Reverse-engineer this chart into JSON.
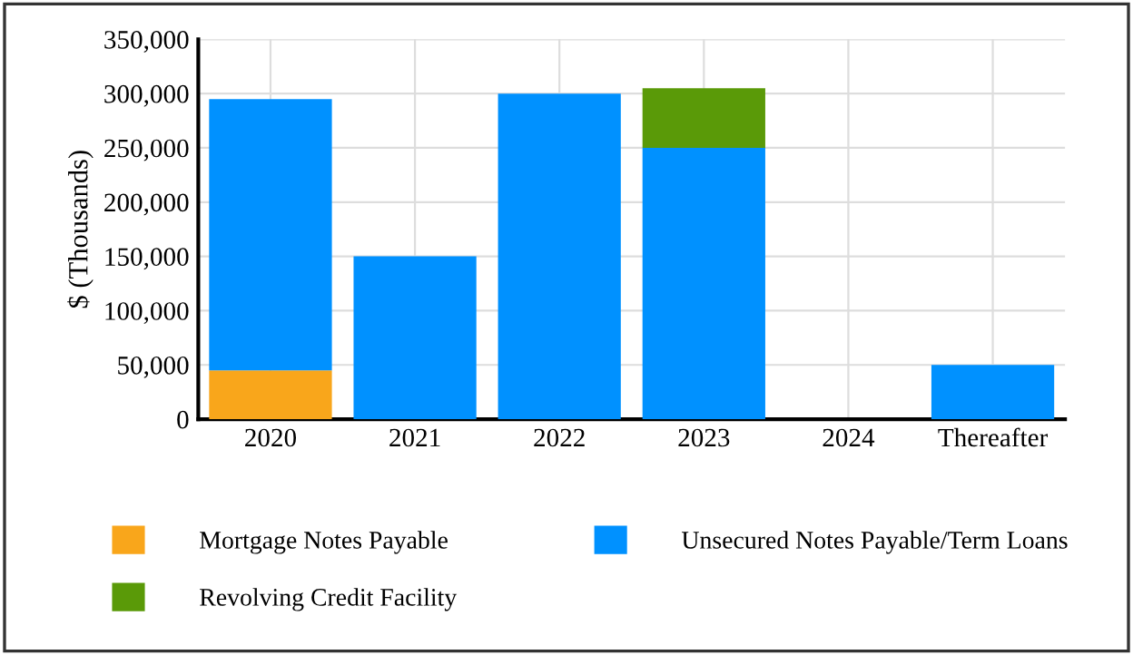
{
  "chart_data": {
    "type": "bar",
    "stacked": true,
    "ylabel": "$ (Thousands)",
    "categories": [
      "2020",
      "2021",
      "2022",
      "2023",
      "2024",
      "Thereafter"
    ],
    "series": [
      {
        "name": "Mortgage Notes Payable",
        "color": "#f9a61b",
        "values": [
          45000,
          0,
          0,
          0,
          0,
          0
        ]
      },
      {
        "name": "Unsecured Notes Payable/Term Loans",
        "color": "#0091ff",
        "values": [
          250000,
          150000,
          300000,
          250000,
          0,
          50000
        ]
      },
      {
        "name": "Revolving Credit Facility",
        "color": "#5a9a08",
        "values": [
          0,
          0,
          0,
          55000,
          0,
          0
        ]
      }
    ],
    "ylim": [
      0,
      350000
    ],
    "yticks": [
      {
        "value": 0,
        "label": "0"
      },
      {
        "value": 50000,
        "label": "50,000"
      },
      {
        "value": 100000,
        "label": "100,000"
      },
      {
        "value": 150000,
        "label": "150,000"
      },
      {
        "value": 200000,
        "label": "200,000"
      },
      {
        "value": 250000,
        "label": "250,000"
      },
      {
        "value": 300000,
        "label": "300,000"
      },
      {
        "value": 350000,
        "label": "350,000"
      }
    ],
    "grid": true,
    "legend": "bottom"
  }
}
